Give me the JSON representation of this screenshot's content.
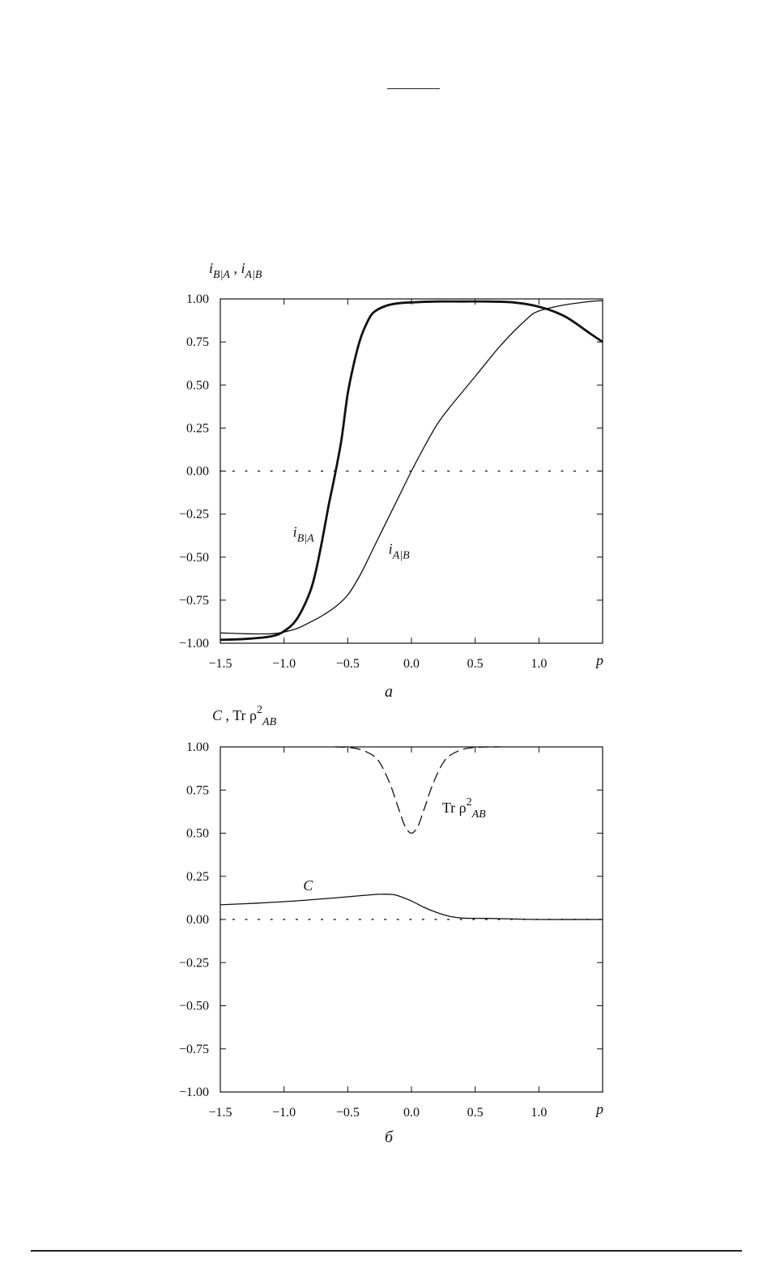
{
  "chart_data": [
    {
      "type": "line",
      "panel_label": "a",
      "ylabel_parts": [
        {
          "text": "i",
          "italic": true
        },
        {
          "text": "B|A",
          "italic": true,
          "sub": true
        },
        {
          "text": " , ",
          "italic": false
        },
        {
          "text": "i",
          "italic": true
        },
        {
          "text": "A|B",
          "italic": true,
          "sub": true
        }
      ],
      "xlabel": "p",
      "xlim": [
        -1.5,
        1.5
      ],
      "ylim": [
        -1.0,
        1.0
      ],
      "xticks": [
        -1.5,
        -1.0,
        -0.5,
        0.0,
        0.5,
        1.0
      ],
      "xtick_labels": [
        "−1.5",
        "−1.0",
        "−0.5",
        "0.0",
        "0.5",
        "1.0"
      ],
      "yticks": [
        1.0,
        0.75,
        0.5,
        0.25,
        0.0,
        -0.25,
        -0.5,
        -0.75,
        -1.0
      ],
      "ytick_labels": [
        "1.00",
        "0.75",
        "0.50",
        "0.25",
        "0.00",
        "−0.25",
        "−0.50",
        "−0.75",
        "−1.00"
      ],
      "zero_line": "dotted",
      "series": [
        {
          "name": "i_B|A",
          "style": "solid-thick",
          "label_parts": [
            {
              "text": "i",
              "italic": true
            },
            {
              "text": "B|A",
              "italic": true,
              "sub": true
            }
          ],
          "label_at": [
            -0.93,
            -0.38
          ],
          "x": [
            -1.5,
            -1.3,
            -1.1,
            -1.0,
            -0.9,
            -0.8,
            -0.75,
            -0.7,
            -0.65,
            -0.6,
            -0.55,
            -0.5,
            -0.45,
            -0.4,
            -0.35,
            -0.3,
            -0.2,
            -0.1,
            0.0,
            0.2,
            0.4,
            0.6,
            0.8,
            1.0,
            1.2,
            1.4,
            1.5
          ],
          "y": [
            -0.98,
            -0.975,
            -0.96,
            -0.93,
            -0.86,
            -0.71,
            -0.58,
            -0.4,
            -0.2,
            -0.02,
            0.18,
            0.45,
            0.63,
            0.77,
            0.86,
            0.92,
            0.96,
            0.975,
            0.98,
            0.985,
            0.985,
            0.985,
            0.98,
            0.955,
            0.9,
            0.8,
            0.75
          ]
        },
        {
          "name": "i_A|B",
          "style": "solid-thin",
          "label_parts": [
            {
              "text": "i",
              "italic": true
            },
            {
              "text": "A|B",
              "italic": true,
              "sub": true
            }
          ],
          "label_at": [
            -0.18,
            -0.48
          ],
          "x": [
            -1.5,
            -1.3,
            -1.1,
            -1.0,
            -0.9,
            -0.8,
            -0.7,
            -0.6,
            -0.5,
            -0.4,
            -0.3,
            -0.2,
            -0.1,
            0.0,
            0.1,
            0.2,
            0.3,
            0.5,
            0.7,
            0.9,
            1.0,
            1.2,
            1.4,
            1.5
          ],
          "y": [
            -0.94,
            -0.945,
            -0.945,
            -0.935,
            -0.915,
            -0.88,
            -0.84,
            -0.79,
            -0.72,
            -0.6,
            -0.45,
            -0.3,
            -0.15,
            0.0,
            0.14,
            0.27,
            0.37,
            0.55,
            0.73,
            0.88,
            0.93,
            0.965,
            0.985,
            0.99
          ]
        }
      ]
    },
    {
      "type": "line",
      "panel_label": "б",
      "ylabel_parts": [
        {
          "text": "C",
          "italic": true
        },
        {
          "text": " ,  Tr ρ",
          "italic": false
        },
        {
          "text": "2",
          "italic": false,
          "sup": true
        },
        {
          "text": "AB",
          "italic": true,
          "sub": true
        }
      ],
      "xlabel": "p",
      "xlim": [
        -1.5,
        1.5
      ],
      "ylim": [
        -1.0,
        1.0
      ],
      "xticks": [
        -1.5,
        -1.0,
        -0.5,
        0.0,
        0.5,
        1.0
      ],
      "xtick_labels": [
        "−1.5",
        "−1.0",
        "−0.5",
        "0.0",
        "0.5",
        "1.0"
      ],
      "yticks": [
        1.0,
        0.75,
        0.5,
        0.25,
        0.0,
        -0.25,
        -0.5,
        -0.75,
        -1.0
      ],
      "ytick_labels": [
        "1.00",
        "0.75",
        "0.50",
        "0.25",
        "0.00",
        "−0.25",
        "−0.50",
        "−0.75",
        "−1.00"
      ],
      "zero_line": "dotted",
      "series": [
        {
          "name": "Tr ρ²_AB",
          "style": "dashed",
          "label_parts": [
            {
              "text": "Tr ρ",
              "italic": false
            },
            {
              "text": "2",
              "italic": false,
              "sup": true
            },
            {
              "text": "AB",
              "italic": true,
              "sub": true
            }
          ],
          "label_at": [
            0.24,
            0.62
          ],
          "x": [
            -0.6,
            -0.5,
            -0.4,
            -0.3,
            -0.25,
            -0.2,
            -0.15,
            -0.1,
            -0.05,
            0.0,
            0.05,
            0.1,
            0.15,
            0.2,
            0.25,
            0.3,
            0.4,
            0.5,
            0.6,
            0.7
          ],
          "y": [
            1.0,
            0.997,
            0.985,
            0.95,
            0.91,
            0.84,
            0.75,
            0.64,
            0.54,
            0.5,
            0.54,
            0.64,
            0.75,
            0.84,
            0.91,
            0.95,
            0.985,
            0.997,
            1.0,
            1.0
          ]
        },
        {
          "name": "C",
          "style": "solid-thin",
          "label_parts": [
            {
              "text": "C",
              "italic": true
            }
          ],
          "label_at": [
            -0.85,
            0.17
          ],
          "x": [
            -1.5,
            -1.2,
            -0.9,
            -0.6,
            -0.4,
            -0.25,
            -0.15,
            -0.1,
            0.0,
            0.1,
            0.2,
            0.3,
            0.4,
            0.6,
            0.8,
            1.0,
            1.5
          ],
          "y": [
            0.085,
            0.095,
            0.108,
            0.125,
            0.138,
            0.146,
            0.145,
            0.136,
            0.107,
            0.07,
            0.04,
            0.018,
            0.008,
            0.006,
            0.003,
            0.0,
            0.0
          ]
        }
      ]
    }
  ]
}
